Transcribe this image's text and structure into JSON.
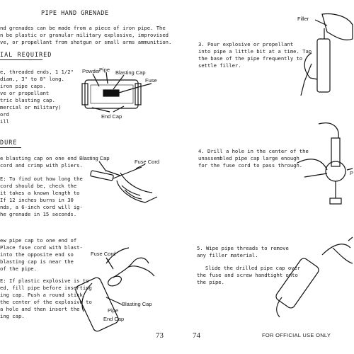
{
  "left_page": {
    "title": "PIPE HAND GRENADE",
    "intro": [
      "nd grenades can be made from a piece of iron pipe.  The",
      "n be plastic or granular military explosive, improvised",
      "ve, or propellant from shotgun or small arms ammunition."
    ],
    "materials_heading": "IAL REQUIRED",
    "materials": [
      "e, threaded ends, 1 1/2\"",
      "diam.,  3\" to 8\" long.",
      " iron pipe caps.",
      "ve or propellant",
      "tric blasting cap.",
      "mercial or military)",
      "ord",
      "ill"
    ],
    "fig1_labels": {
      "powder": "Powder",
      "pipe": "Pipe",
      "blasting_cap": "Blasting Cap",
      "fuse": "Fuse",
      "end_cap": "End Cap"
    },
    "procedure_heading": "DURE",
    "step1": [
      "e blasting cap on one end",
      "cord and crimp with pliers."
    ],
    "note1": [
      "E:  To find out how long the",
      "cord should be, check the",
      "it takes a known length to",
      "  If 12 inches burns in 30",
      "nds, a 6-inch cord will ig-",
      "he grenade in 15 seconds."
    ],
    "fig2_labels": {
      "blasting_cap": "Blasting Cap",
      "fuse_cord": "Fuse Cord"
    },
    "step2": [
      "ew pipe cap to one end of",
      "Place fuse cord with blast-",
      " into the opposite end so",
      "blasting cap is near the",
      "of the pipe."
    ],
    "note2": [
      "E:  If plastic explosive is to",
      "ed, fill pipe before inserting",
      "ing cap.  Push a round stick",
      "the center of the explosive to",
      " a hole and then insert the",
      "ing cap."
    ],
    "fig3_labels": {
      "fuse_cord": "Fuse Cord",
      "blasting_cap": "Blasting Cap",
      "pipe": "Pipe",
      "end_cap": "End Cap"
    },
    "page_number": "73"
  },
  "right_page": {
    "fig_filler_label": "Filler",
    "step3": [
      "3.  Pour explosive or propellant",
      "into pipe a little bit at a time.  Tap",
      "the base of the pipe frequently to",
      "settle filler."
    ],
    "step4": [
      "4.  Drill a hole in the center of the",
      "unassembled pipe cap large enough",
      "for the fuse cord to pass through."
    ],
    "step4_label_cut": "P",
    "step5": [
      "5.  Wipe pipe threads to remove",
      "any filler material."
    ],
    "step5b": [
      "Slide the drilled pipe cap over",
      "the fuse and screw handtight onto",
      "the pipe."
    ],
    "page_number": "74",
    "footer": "FOR OFFICIAL USE ONLY"
  }
}
